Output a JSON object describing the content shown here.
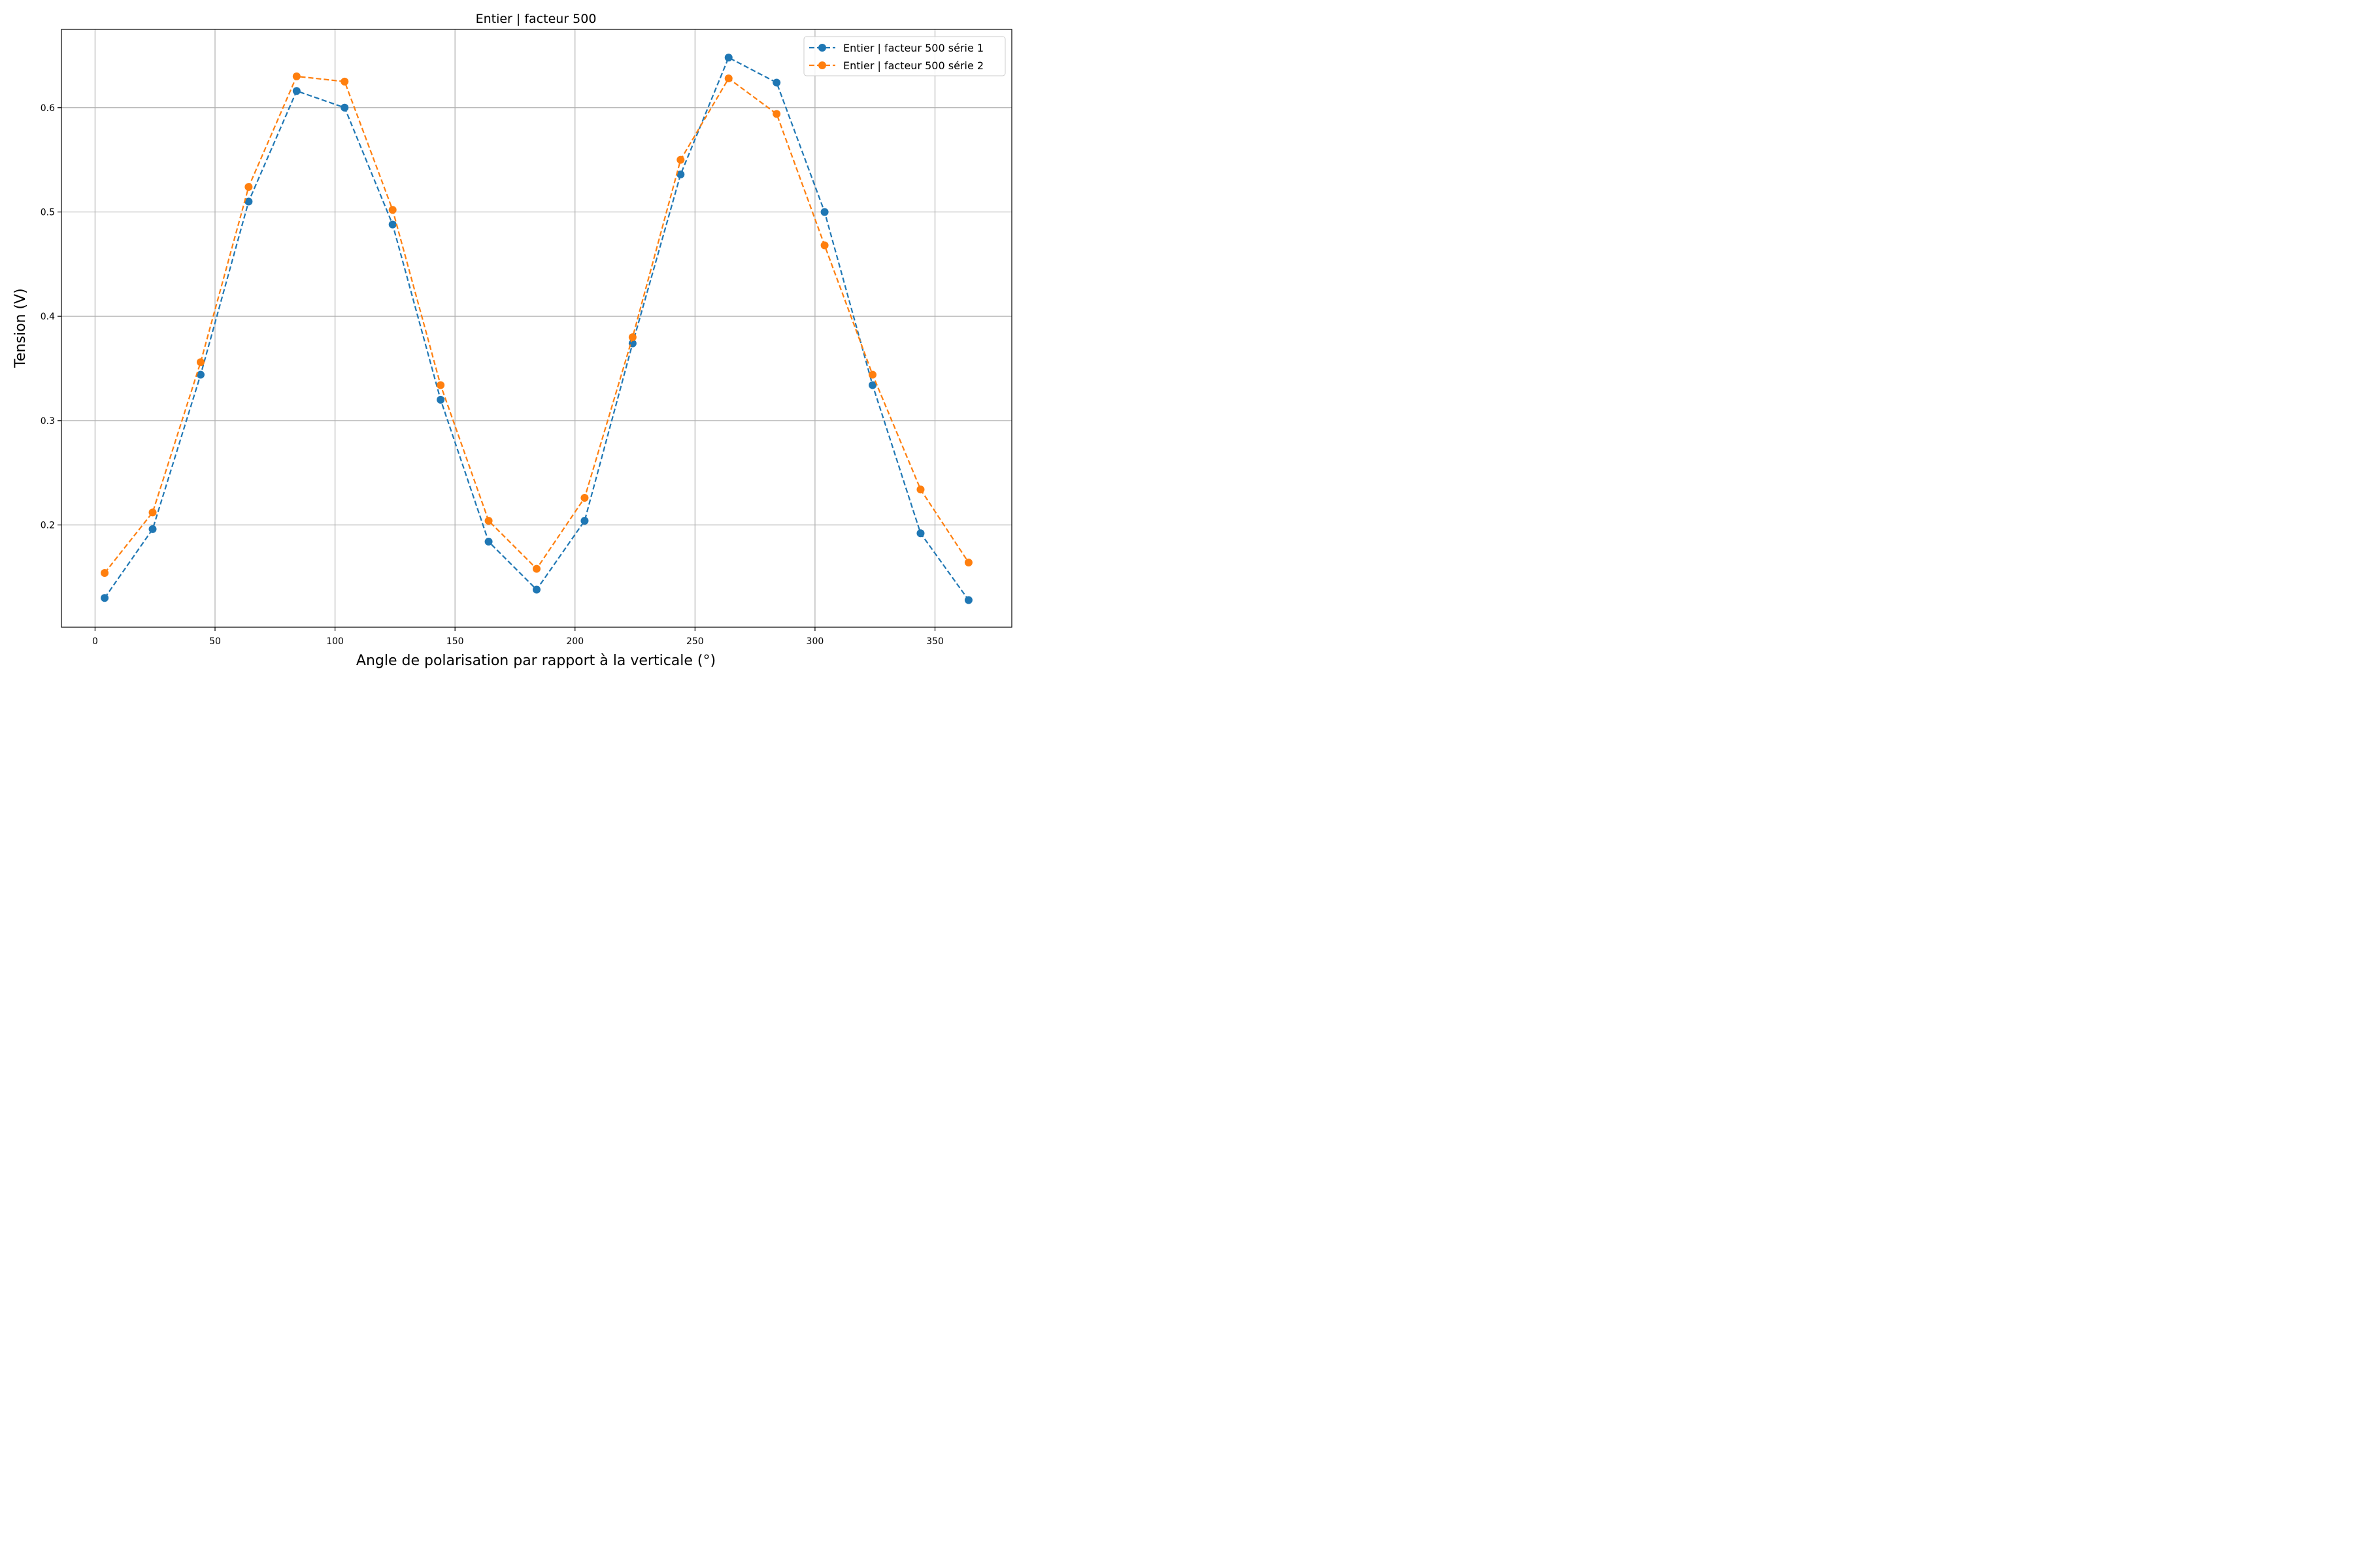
{
  "chart_data": {
    "type": "line",
    "title": "Entier | facteur 500",
    "xlabel": "Angle de polarisation par rapport à la verticale (°)",
    "ylabel": "Tension (V)",
    "xlim": [
      -14,
      382
    ],
    "ylim": [
      0.102,
      0.675
    ],
    "xticks": [
      0,
      50,
      100,
      150,
      200,
      250,
      300,
      350
    ],
    "yticks": [
      0.2,
      0.3,
      0.4,
      0.5,
      0.6
    ],
    "grid": true,
    "legend_position": "top-right",
    "x": [
      4,
      24,
      44,
      64,
      84,
      104,
      124,
      144,
      164,
      184,
      204,
      224,
      244,
      264,
      284,
      304,
      324,
      344,
      364
    ],
    "series": [
      {
        "name": "Entier | facteur 500 série 1",
        "color": "#1f77b4",
        "values": [
          0.13,
          0.196,
          0.344,
          0.51,
          0.616,
          0.6,
          0.488,
          0.32,
          0.184,
          0.138,
          0.204,
          0.374,
          0.536,
          0.648,
          0.624,
          0.5,
          0.334,
          0.192,
          0.128
        ]
      },
      {
        "name": "Entier | facteur 500 série 2",
        "color": "#ff7f0e",
        "values": [
          0.154,
          0.212,
          0.356,
          0.524,
          0.63,
          0.625,
          0.502,
          0.334,
          0.204,
          0.158,
          0.226,
          0.38,
          0.55,
          0.628,
          0.594,
          0.468,
          0.344,
          0.234,
          0.164
        ]
      }
    ]
  }
}
